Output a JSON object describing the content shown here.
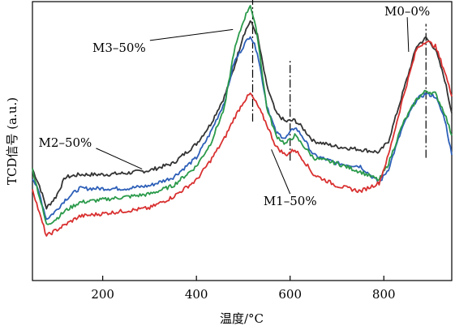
{
  "chart_data": {
    "type": "line",
    "xlabel": "温度/°C",
    "ylabel": "TCD信号 (a.u.)",
    "xlim": [
      50,
      945
    ],
    "x_ticks": [
      200,
      400,
      600,
      800
    ],
    "ylim": [
      0,
      100
    ],
    "grid": false,
    "legend": "none",
    "series": [
      {
        "color": "#333333",
        "x": [
          50,
          65,
          80,
          100,
          120,
          150,
          200,
          250,
          300,
          350,
          400,
          430,
          460,
          480,
          500,
          515,
          530,
          550,
          570,
          590,
          610,
          625,
          650,
          700,
          750,
          790,
          810,
          840,
          870,
          890,
          910,
          930,
          945
        ],
        "y": [
          40,
          34,
          26,
          30,
          37,
          38,
          38,
          38.5,
          39.5,
          42,
          49,
          56,
          66,
          76,
          88,
          93,
          88,
          70,
          60,
          57,
          57.5,
          55,
          50,
          48,
          47,
          46,
          50,
          67,
          84,
          87,
          83,
          72,
          60
        ]
      },
      {
        "color": "#2d5fb8",
        "x": [
          50,
          65,
          80,
          100,
          120,
          150,
          200,
          250,
          300,
          350,
          400,
          430,
          460,
          480,
          500,
          515,
          530,
          550,
          570,
          590,
          610,
          625,
          650,
          700,
          750,
          790,
          810,
          840,
          870,
          890,
          910,
          930,
          945
        ],
        "y": [
          37,
          31,
          22,
          25,
          29,
          33,
          33,
          33,
          34,
          37,
          44,
          53,
          64,
          78,
          84,
          88,
          82,
          63,
          53,
          51,
          55,
          52,
          45,
          42,
          41,
          35,
          40,
          55,
          65,
          67,
          66,
          58,
          45
        ]
      },
      {
        "color": "#2a9a4a",
        "x": [
          50,
          65,
          80,
          100,
          120,
          150,
          200,
          250,
          300,
          350,
          400,
          430,
          460,
          480,
          500,
          515,
          530,
          550,
          570,
          590,
          610,
          625,
          650,
          700,
          750,
          790,
          810,
          840,
          870,
          890,
          910,
          930,
          945
        ],
        "y": [
          40,
          30,
          20,
          22,
          25,
          28,
          29,
          30,
          31,
          34,
          41,
          49,
          62,
          82,
          93,
          99,
          88,
          62,
          52,
          49,
          52,
          49,
          44,
          42,
          39,
          36,
          42,
          56,
          65,
          68,
          67,
          60,
          52
        ]
      },
      {
        "color": "#d93030",
        "x": [
          50,
          65,
          80,
          100,
          120,
          150,
          200,
          250,
          300,
          350,
          400,
          430,
          460,
          480,
          500,
          515,
          530,
          550,
          570,
          590,
          610,
          625,
          650,
          700,
          750,
          790,
          810,
          840,
          870,
          890,
          910,
          930,
          945
        ],
        "y": [
          33,
          24,
          16,
          18,
          20,
          23,
          24,
          25,
          26,
          30,
          36,
          43,
          51,
          58,
          64,
          67,
          63,
          56,
          48,
          45,
          47,
          44,
          38,
          34,
          32,
          35,
          45,
          65,
          83,
          86,
          84,
          75,
          66
        ]
      }
    ],
    "reference_lines": [
      {
        "x": 520,
        "y_from": 57,
        "y_to": 104
      },
      {
        "x": 600,
        "y_from": 43,
        "y_to": 79
      },
      {
        "x": 890,
        "y_from": 44,
        "y_to": 92
      }
    ],
    "annotations": [
      {
        "text": "M0–0%",
        "x": 850,
        "y": 95,
        "arrow_to": [
          853,
          82
        ]
      },
      {
        "text": "M3–50%",
        "x": 235,
        "y": 82,
        "arrow_to": [
          478,
          90
        ]
      },
      {
        "text": "M2–50%",
        "x": 120,
        "y": 48,
        "arrow_to": [
          284,
          40
        ]
      },
      {
        "text": "M1–50%",
        "x": 600,
        "y": 27,
        "arrow_to": [
          560,
          47
        ]
      }
    ]
  }
}
